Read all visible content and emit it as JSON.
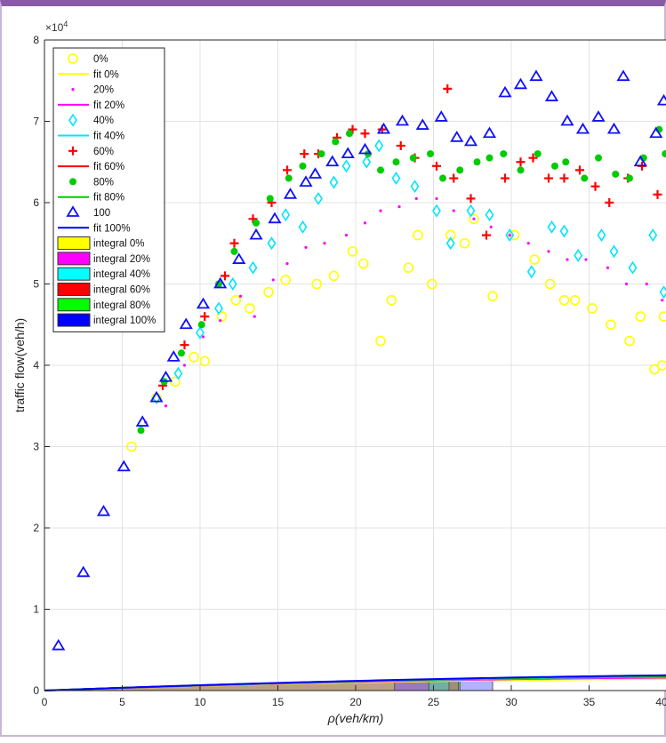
{
  "chart_data": {
    "type": "scatter",
    "xlabel": "ρ(veh/km)",
    "ylabel": "traffic flow(veh/h)",
    "y_exponent_label": "×10",
    "y_exponent_power": "4",
    "xlim": [
      0,
      40
    ],
    "ylim": [
      0,
      8
    ],
    "x_ticks": [
      0,
      5,
      10,
      15,
      20,
      25,
      30,
      35,
      40
    ],
    "y_ticks": [
      0,
      1,
      2,
      3,
      4,
      5,
      6,
      7,
      8
    ],
    "grid": true,
    "legend_position": "top-left",
    "scatter_series": [
      {
        "name": "0%",
        "marker": "circle",
        "color": "#ffff00",
        "points": [
          [
            5.6,
            3.0
          ],
          [
            7.2,
            3.6
          ],
          [
            8.4,
            3.8
          ],
          [
            9.6,
            4.1
          ],
          [
            10.3,
            4.05
          ],
          [
            11.4,
            4.6
          ],
          [
            12.3,
            4.8
          ],
          [
            13.2,
            4.7
          ],
          [
            14.4,
            4.9
          ],
          [
            15.5,
            5.05
          ],
          [
            17.5,
            5.0
          ],
          [
            18.6,
            5.1
          ],
          [
            19.8,
            5.4
          ],
          [
            20.5,
            5.25
          ],
          [
            21.6,
            4.3
          ],
          [
            22.3,
            4.8
          ],
          [
            23.4,
            5.2
          ],
          [
            24.0,
            5.6
          ],
          [
            24.9,
            5.0
          ],
          [
            26.1,
            5.6
          ],
          [
            27.0,
            5.5
          ],
          [
            27.6,
            5.8
          ],
          [
            28.8,
            4.85
          ],
          [
            30.2,
            5.6
          ],
          [
            31.5,
            5.3
          ],
          [
            32.5,
            5.0
          ],
          [
            33.4,
            4.8
          ],
          [
            34.1,
            4.8
          ],
          [
            35.2,
            4.7
          ],
          [
            36.4,
            4.5
          ],
          [
            37.6,
            4.3
          ],
          [
            38.3,
            4.6
          ],
          [
            39.2,
            3.95
          ],
          [
            39.8,
            4.6
          ],
          [
            39.7,
            4.0
          ]
        ]
      },
      {
        "name": "20%",
        "marker": "dot",
        "color": "#ff00ff",
        "points": [
          [
            6.5,
            3.3
          ],
          [
            7.8,
            3.5
          ],
          [
            9.0,
            4.0
          ],
          [
            10.2,
            4.35
          ],
          [
            11.3,
            4.55
          ],
          [
            12.6,
            4.85
          ],
          [
            13.5,
            4.6
          ],
          [
            14.7,
            5.05
          ],
          [
            15.6,
            5.25
          ],
          [
            16.8,
            5.45
          ],
          [
            18.0,
            5.5
          ],
          [
            19.4,
            5.6
          ],
          [
            20.6,
            5.75
          ],
          [
            21.6,
            5.9
          ],
          [
            22.8,
            5.95
          ],
          [
            23.9,
            6.05
          ],
          [
            25.2,
            6.05
          ],
          [
            26.3,
            5.9
          ],
          [
            27.6,
            5.8
          ],
          [
            28.7,
            5.7
          ],
          [
            29.9,
            5.6
          ],
          [
            31.1,
            5.5
          ],
          [
            32.4,
            5.4
          ],
          [
            33.6,
            5.3
          ],
          [
            34.8,
            5.3
          ],
          [
            36.2,
            5.2
          ],
          [
            37.4,
            5.0
          ],
          [
            38.7,
            5.0
          ],
          [
            39.7,
            4.8
          ]
        ]
      },
      {
        "name": "40%",
        "marker": "diamond",
        "color": "#00e5ff",
        "points": [
          [
            7.2,
            3.6
          ],
          [
            8.6,
            3.9
          ],
          [
            10.0,
            4.4
          ],
          [
            11.2,
            4.7
          ],
          [
            12.1,
            5.0
          ],
          [
            13.4,
            5.2
          ],
          [
            14.6,
            5.5
          ],
          [
            15.5,
            5.85
          ],
          [
            16.6,
            5.7
          ],
          [
            17.6,
            6.05
          ],
          [
            18.6,
            6.25
          ],
          [
            19.4,
            6.45
          ],
          [
            20.7,
            6.5
          ],
          [
            21.5,
            6.7
          ],
          [
            22.6,
            6.3
          ],
          [
            23.8,
            6.2
          ],
          [
            25.2,
            5.9
          ],
          [
            26.1,
            5.5
          ],
          [
            27.4,
            5.9
          ],
          [
            28.6,
            5.85
          ],
          [
            29.9,
            5.6
          ],
          [
            31.3,
            5.15
          ],
          [
            32.6,
            5.7
          ],
          [
            33.4,
            5.65
          ],
          [
            34.3,
            5.35
          ],
          [
            35.8,
            5.6
          ],
          [
            36.6,
            5.4
          ],
          [
            37.8,
            5.2
          ],
          [
            39.1,
            5.6
          ],
          [
            39.8,
            4.9
          ]
        ]
      },
      {
        "name": "60%",
        "marker": "plus",
        "color": "#ff0000",
        "points": [
          [
            7.6,
            3.75
          ],
          [
            9.0,
            4.25
          ],
          [
            10.3,
            4.6
          ],
          [
            11.6,
            5.1
          ],
          [
            12.2,
            5.5
          ],
          [
            13.4,
            5.8
          ],
          [
            14.6,
            6.0
          ],
          [
            15.6,
            6.4
          ],
          [
            16.7,
            6.6
          ],
          [
            17.6,
            6.6
          ],
          [
            18.8,
            6.8
          ],
          [
            19.8,
            6.9
          ],
          [
            20.6,
            6.85
          ],
          [
            21.7,
            6.9
          ],
          [
            22.9,
            6.7
          ],
          [
            23.8,
            6.55
          ],
          [
            25.2,
            6.45
          ],
          [
            25.9,
            7.4
          ],
          [
            26.3,
            6.3
          ],
          [
            27.4,
            6.05
          ],
          [
            28.4,
            5.6
          ],
          [
            29.6,
            6.3
          ],
          [
            30.6,
            6.5
          ],
          [
            31.4,
            6.55
          ],
          [
            32.4,
            6.3
          ],
          [
            33.4,
            6.3
          ],
          [
            34.4,
            6.4
          ],
          [
            35.4,
            6.2
          ],
          [
            36.3,
            6.0
          ],
          [
            37.5,
            6.3
          ],
          [
            38.4,
            6.45
          ],
          [
            39.4,
            6.1
          ]
        ]
      },
      {
        "name": "80%",
        "marker": "filled-circle",
        "color": "#00cc00",
        "points": [
          [
            6.2,
            3.2
          ],
          [
            7.7,
            3.8
          ],
          [
            8.8,
            4.15
          ],
          [
            10.1,
            4.5
          ],
          [
            11.2,
            5.0
          ],
          [
            12.2,
            5.4
          ],
          [
            13.6,
            5.75
          ],
          [
            14.5,
            6.05
          ],
          [
            15.7,
            6.3
          ],
          [
            16.6,
            6.45
          ],
          [
            17.8,
            6.6
          ],
          [
            18.7,
            6.75
          ],
          [
            19.6,
            6.85
          ],
          [
            20.8,
            6.6
          ],
          [
            21.6,
            6.4
          ],
          [
            22.6,
            6.5
          ],
          [
            23.7,
            6.55
          ],
          [
            24.8,
            6.6
          ],
          [
            25.6,
            6.3
          ],
          [
            26.7,
            6.4
          ],
          [
            27.8,
            6.5
          ],
          [
            28.6,
            6.55
          ],
          [
            29.5,
            6.6
          ],
          [
            30.6,
            6.4
          ],
          [
            31.7,
            6.6
          ],
          [
            32.8,
            6.45
          ],
          [
            33.5,
            6.5
          ],
          [
            34.7,
            6.3
          ],
          [
            35.6,
            6.55
          ],
          [
            36.7,
            6.35
          ],
          [
            37.6,
            6.3
          ],
          [
            38.5,
            6.55
          ],
          [
            39.5,
            6.9
          ],
          [
            39.9,
            6.6
          ]
        ]
      },
      {
        "name": "100",
        "marker": "triangle",
        "color": "#1010ff",
        "points": [
          [
            0.9,
            0.55
          ],
          [
            2.5,
            1.45
          ],
          [
            3.8,
            2.2
          ],
          [
            5.1,
            2.75
          ],
          [
            6.3,
            3.3
          ],
          [
            7.2,
            3.6
          ],
          [
            7.8,
            3.85
          ],
          [
            8.3,
            4.1
          ],
          [
            9.1,
            4.5
          ],
          [
            10.2,
            4.75
          ],
          [
            11.3,
            5.0
          ],
          [
            12.5,
            5.3
          ],
          [
            13.6,
            5.6
          ],
          [
            14.8,
            5.8
          ],
          [
            15.8,
            6.1
          ],
          [
            16.8,
            6.25
          ],
          [
            17.4,
            6.35
          ],
          [
            18.5,
            6.5
          ],
          [
            19.5,
            6.6
          ],
          [
            20.6,
            6.65
          ],
          [
            21.8,
            6.9
          ],
          [
            23.0,
            7.0
          ],
          [
            24.3,
            6.95
          ],
          [
            25.5,
            7.05
          ],
          [
            26.5,
            6.8
          ],
          [
            27.4,
            6.75
          ],
          [
            28.6,
            6.85
          ],
          [
            29.6,
            7.35
          ],
          [
            30.6,
            7.45
          ],
          [
            31.6,
            7.55
          ],
          [
            32.6,
            7.3
          ],
          [
            33.6,
            7.0
          ],
          [
            34.6,
            6.9
          ],
          [
            35.6,
            7.05
          ],
          [
            36.6,
            6.9
          ],
          [
            37.2,
            7.55
          ],
          [
            38.3,
            6.5
          ],
          [
            39.3,
            6.85
          ],
          [
            39.8,
            7.25
          ]
        ]
      }
    ],
    "fit_series": [
      {
        "name": "fit 0%",
        "color": "#ffff00",
        "vf": 64,
        "kj": 90
      },
      {
        "name": "fit 20%",
        "color": "#ff00ff",
        "vf": 67,
        "kj": 98
      },
      {
        "name": "fit 40%",
        "color": "#00e5ff",
        "vf": 69,
        "kj": 104
      },
      {
        "name": "fit 60%",
        "color": "#ff0000",
        "vf": 71,
        "kj": 106
      },
      {
        "name": "fit 80%",
        "color": "#00cc00",
        "vf": 71,
        "kj": 106.8
      },
      {
        "name": "fit 100%",
        "color": "#0000ff",
        "vf": 72,
        "kj": 115
      }
    ],
    "integral_series": [
      {
        "name": "integral 0%",
        "color": "#ffff00",
        "x_end": 22.5
      },
      {
        "name": "integral 20%",
        "color": "#ff00ff",
        "x_end": 24.7
      },
      {
        "name": "integral 40%",
        "color": "#00ffff",
        "x_end": 26.0
      },
      {
        "name": "integral 60%",
        "color": "#ff0000",
        "x_end": 26.6
      },
      {
        "name": "integral 80%",
        "color": "#00ff00",
        "x_end": 26.7
      },
      {
        "name": "integral 100%",
        "color": "#0000ff",
        "x_end": 28.8
      }
    ],
    "legend": [
      {
        "label": "0%",
        "kind": "circle",
        "color": "#ffff00"
      },
      {
        "label": "fit 0%",
        "kind": "line",
        "color": "#ffff00"
      },
      {
        "label": "20%",
        "kind": "dot",
        "color": "#ff00ff"
      },
      {
        "label": "fit 20%",
        "kind": "line",
        "color": "#ff00ff"
      },
      {
        "label": "40%",
        "kind": "diamond",
        "color": "#00e5ff"
      },
      {
        "label": "fit 40%",
        "kind": "line",
        "color": "#00e5ff"
      },
      {
        "label": "60%",
        "kind": "plus",
        "color": "#ff0000"
      },
      {
        "label": "fit 60%",
        "kind": "line",
        "color": "#ff0000"
      },
      {
        "label": "80%",
        "kind": "filled-circle",
        "color": "#00cc00"
      },
      {
        "label": "fit 80%",
        "kind": "line",
        "color": "#00cc00"
      },
      {
        "label": "100",
        "kind": "triangle",
        "color": "#1010ff"
      },
      {
        "label": "fit 100%",
        "kind": "line",
        "color": "#0000ff"
      },
      {
        "label": "integral 0%",
        "kind": "patch",
        "color": "#ffff00"
      },
      {
        "label": "integral 20%",
        "kind": "patch",
        "color": "#ff00ff"
      },
      {
        "label": "integral 40%",
        "kind": "patch",
        "color": "#00ffff"
      },
      {
        "label": "integral 60%",
        "kind": "patch",
        "color": "#ff0000"
      },
      {
        "label": "integral 80%",
        "kind": "patch",
        "color": "#00ff00"
      },
      {
        "label": "integral 100%",
        "kind": "patch",
        "color": "#0000ff"
      }
    ]
  }
}
